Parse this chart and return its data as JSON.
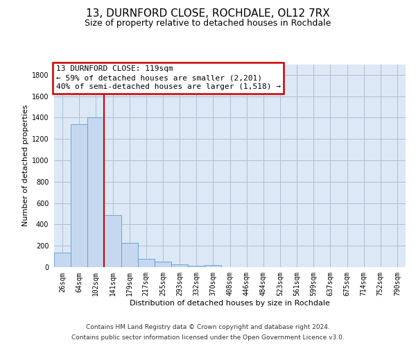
{
  "title": "13, DURNFORD CLOSE, ROCHDALE, OL12 7RX",
  "subtitle": "Size of property relative to detached houses in Rochdale",
  "xlabel": "Distribution of detached houses by size in Rochdale",
  "ylabel": "Number of detached properties",
  "bar_values": [
    135,
    1340,
    1400,
    490,
    225,
    80,
    50,
    25,
    15,
    20,
    0,
    0,
    0,
    0,
    0,
    0,
    0,
    0,
    0,
    0,
    0
  ],
  "bar_labels": [
    "26sqm",
    "64sqm",
    "102sqm",
    "141sqm",
    "179sqm",
    "217sqm",
    "255sqm",
    "293sqm",
    "332sqm",
    "370sqm",
    "408sqm",
    "446sqm",
    "484sqm",
    "523sqm",
    "561sqm",
    "599sqm",
    "637sqm",
    "675sqm",
    "714sqm",
    "752sqm",
    "790sqm"
  ],
  "bar_color": "#c5d8f0",
  "bar_edge_color": "#5b9bd5",
  "background_color": "#dce8f5",
  "grid_color": "#b0bdd0",
  "vline_x_index": 2,
  "vline_color": "#cc0000",
  "annotation_line1": "13 DURNFORD CLOSE: 119sqm",
  "annotation_line2": "← 59% of detached houses are smaller (2,201)",
  "annotation_line3": "40% of semi-detached houses are larger (1,518) →",
  "annotation_box_edgecolor": "#cc0000",
  "ylim_max": 1900,
  "yticks": [
    0,
    200,
    400,
    600,
    800,
    1000,
    1200,
    1400,
    1600,
    1800
  ],
  "footer_line1": "Contains HM Land Registry data © Crown copyright and database right 2024.",
  "footer_line2": "Contains public sector information licensed under the Open Government Licence v3.0.",
  "title_fontsize": 11,
  "subtitle_fontsize": 9,
  "tick_labelsize": 7,
  "ylabel_fontsize": 8,
  "xlabel_fontsize": 8,
  "annotation_fontsize": 8,
  "footer_fontsize": 6.5
}
